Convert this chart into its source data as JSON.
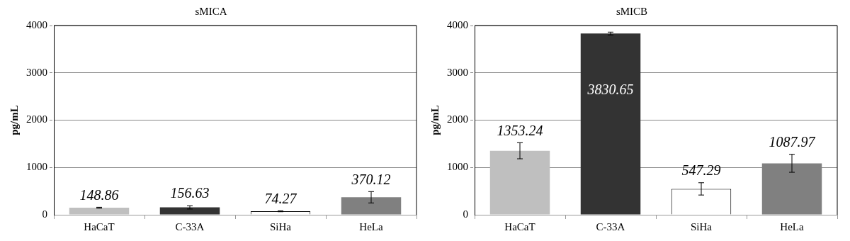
{
  "chart_data": [
    {
      "type": "bar",
      "title": "sMICA",
      "ylabel": "pg/mL",
      "categories": [
        "HaCaT",
        "C-33A",
        "SiHa",
        "HeLa"
      ],
      "values": [
        148.86,
        156.63,
        74.27,
        370.12
      ],
      "colors": [
        "#bfbfbf",
        "#333333",
        "#ffffff",
        "#808080"
      ],
      "errors": [
        10,
        35,
        10,
        120
      ],
      "ylim": [
        0,
        4000
      ],
      "yticks": [
        0,
        1000,
        2000,
        3000,
        4000
      ],
      "grid": "y",
      "data_labels": true
    },
    {
      "type": "bar",
      "title": "sMICB",
      "ylabel": "pg/mL",
      "categories": [
        "HaCaT",
        "C-33A",
        "SiHa",
        "HeLa"
      ],
      "values": [
        1353.24,
        3830.65,
        547.29,
        1087.97
      ],
      "colors": [
        "#bfbfbf",
        "#333333",
        "#ffffff",
        "#808080"
      ],
      "errors": [
        170,
        30,
        130,
        190
      ],
      "ylim": [
        0,
        4000
      ],
      "yticks": [
        0,
        1000,
        2000,
        3000,
        4000
      ],
      "grid": "y",
      "data_labels": true
    }
  ]
}
